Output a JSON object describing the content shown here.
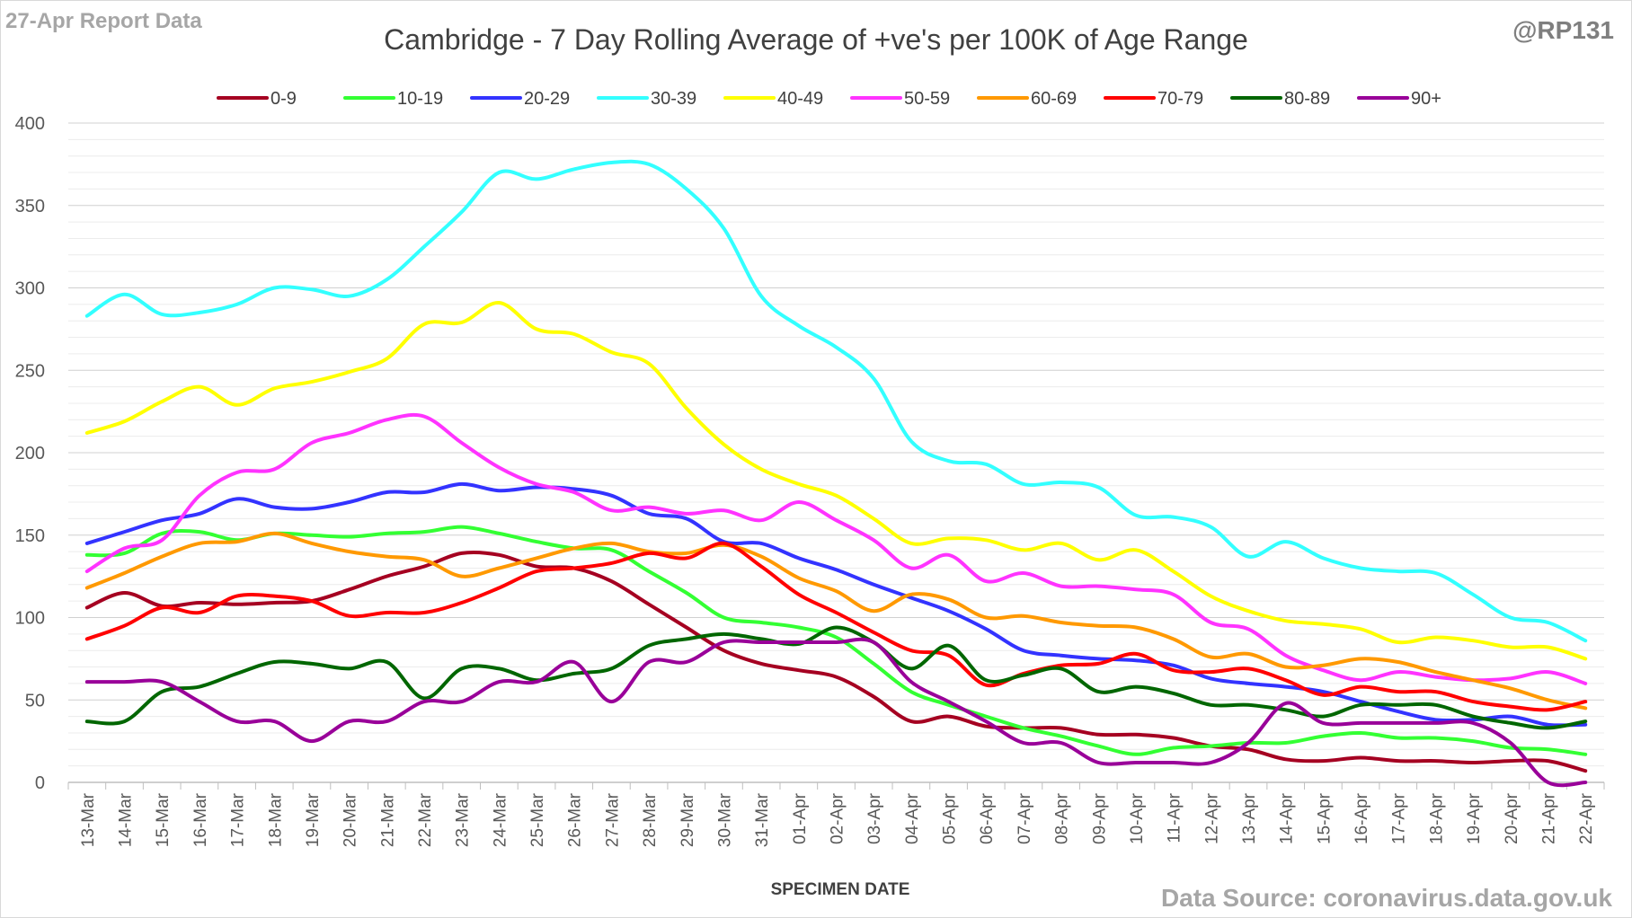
{
  "header": {
    "report_date": "27-Apr Report Data",
    "handle": "@RP131",
    "source": "Data Source: coronavirus.data.gov.uk"
  },
  "chart_data": {
    "type": "line",
    "title": "Cambridge - 7 Day Rolling Average of +ve's per 100K of Age Range",
    "xlabel": "SPECIMEN DATE",
    "ylabel": "",
    "ylim": [
      0,
      400
    ],
    "yticks": [
      0,
      50,
      100,
      150,
      200,
      250,
      300,
      350,
      400
    ],
    "grid": true,
    "legend_position": "top",
    "categories": [
      "13-Mar",
      "14-Mar",
      "15-Mar",
      "16-Mar",
      "17-Mar",
      "18-Mar",
      "19-Mar",
      "20-Mar",
      "21-Mar",
      "22-Mar",
      "23-Mar",
      "24-Mar",
      "25-Mar",
      "26-Mar",
      "27-Mar",
      "28-Mar",
      "29-Mar",
      "30-Mar",
      "31-Mar",
      "01-Apr",
      "02-Apr",
      "03-Apr",
      "04-Apr",
      "05-Apr",
      "06-Apr",
      "07-Apr",
      "08-Apr",
      "09-Apr",
      "10-Apr",
      "11-Apr",
      "12-Apr",
      "13-Apr",
      "14-Apr",
      "15-Apr",
      "16-Apr",
      "17-Apr",
      "18-Apr",
      "19-Apr",
      "20-Apr",
      "21-Apr",
      "22-Apr"
    ],
    "series": [
      {
        "name": "0-9",
        "color": "#a50021",
        "values": [
          106,
          115,
          107,
          109,
          108,
          109,
          110,
          117,
          125,
          131,
          139,
          138,
          131,
          130,
          122,
          108,
          94,
          80,
          72,
          68,
          64,
          52,
          37,
          40,
          34,
          33,
          33,
          29,
          29,
          27,
          22,
          20,
          14,
          13,
          15,
          13,
          13,
          12,
          13,
          13,
          7
        ]
      },
      {
        "name": "10-19",
        "color": "#33ff33",
        "values": [
          138,
          139,
          151,
          152,
          147,
          151,
          150,
          149,
          151,
          152,
          155,
          151,
          146,
          142,
          141,
          128,
          115,
          100,
          97,
          94,
          88,
          72,
          55,
          47,
          40,
          33,
          28,
          22,
          17,
          21,
          22,
          24,
          24,
          28,
          30,
          27,
          27,
          25,
          21,
          20,
          17
        ]
      },
      {
        "name": "20-29",
        "color": "#3333ff",
        "values": [
          145,
          152,
          159,
          163,
          172,
          167,
          166,
          170,
          176,
          176,
          181,
          177,
          179,
          178,
          174,
          163,
          160,
          146,
          145,
          136,
          129,
          120,
          112,
          104,
          93,
          80,
          77,
          75,
          74,
          71,
          63,
          60,
          58,
          55,
          49,
          43,
          38,
          38,
          40,
          35,
          35
        ]
      },
      {
        "name": "30-39",
        "color": "#33ffff",
        "values": [
          283,
          296,
          284,
          285,
          290,
          300,
          299,
          295,
          305,
          325,
          346,
          370,
          366,
          372,
          376,
          375,
          360,
          336,
          295,
          277,
          264,
          245,
          207,
          195,
          193,
          181,
          182,
          179,
          162,
          161,
          155,
          137,
          146,
          136,
          130,
          128,
          127,
          114,
          100,
          97,
          86
        ]
      },
      {
        "name": "40-49",
        "color": "#ffff00",
        "values": [
          212,
          219,
          231,
          240,
          229,
          239,
          243,
          249,
          257,
          278,
          279,
          291,
          275,
          272,
          261,
          254,
          227,
          205,
          190,
          181,
          174,
          160,
          145,
          148,
          147,
          141,
          145,
          135,
          141,
          128,
          113,
          104,
          98,
          96,
          93,
          85,
          88,
          86,
          82,
          82,
          75
        ]
      },
      {
        "name": "50-59",
        "color": "#ff33ff",
        "values": [
          128,
          142,
          147,
          174,
          188,
          190,
          206,
          212,
          220,
          222,
          206,
          191,
          181,
          176,
          165,
          167,
          163,
          165,
          159,
          170,
          159,
          147,
          130,
          138,
          122,
          127,
          119,
          119,
          117,
          114,
          97,
          93,
          77,
          68,
          62,
          67,
          64,
          62,
          63,
          67,
          60
        ]
      },
      {
        "name": "60-69",
        "color": "#ff9900",
        "values": [
          118,
          127,
          137,
          145,
          146,
          151,
          145,
          140,
          137,
          135,
          125,
          130,
          136,
          142,
          145,
          140,
          139,
          144,
          137,
          124,
          116,
          104,
          114,
          111,
          100,
          101,
          97,
          95,
          94,
          87,
          76,
          78,
          70,
          71,
          75,
          73,
          67,
          62,
          57,
          50,
          45
        ]
      },
      {
        "name": "70-79",
        "color": "#ff0000",
        "values": [
          87,
          95,
          106,
          103,
          113,
          113,
          110,
          101,
          103,
          103,
          109,
          118,
          128,
          130,
          133,
          139,
          136,
          145,
          131,
          114,
          103,
          91,
          80,
          77,
          59,
          66,
          71,
          72,
          78,
          68,
          67,
          69,
          62,
          53,
          58,
          55,
          55,
          49,
          46,
          44,
          49
        ]
      },
      {
        "name": "80-89",
        "color": "#006600",
        "values": [
          37,
          37,
          55,
          58,
          66,
          73,
          72,
          69,
          73,
          51,
          69,
          69,
          62,
          66,
          69,
          83,
          87,
          90,
          87,
          84,
          94,
          85,
          69,
          83,
          62,
          65,
          69,
          55,
          58,
          54,
          47,
          47,
          44,
          40,
          47,
          47,
          47,
          40,
          36,
          33,
          37
        ]
      },
      {
        "name": "90+",
        "color": "#990099",
        "values": [
          61,
          61,
          61,
          49,
          37,
          37,
          25,
          37,
          37,
          49,
          49,
          61,
          61,
          73,
          49,
          73,
          73,
          85,
          85,
          85,
          85,
          85,
          61,
          49,
          37,
          24,
          24,
          12,
          12,
          12,
          12,
          24,
          48,
          36,
          36,
          36,
          36,
          36,
          24,
          0,
          0
        ]
      }
    ]
  }
}
